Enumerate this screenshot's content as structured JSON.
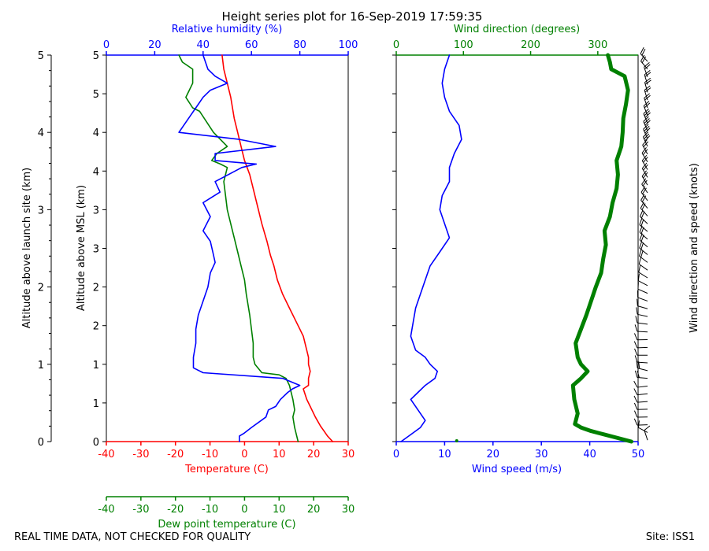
{
  "colors": {
    "red": "#ff0000",
    "green": "#008000",
    "blue": "#0000ff",
    "black": "#000000"
  },
  "chart_data": [
    {
      "id": "thermo",
      "type": "line",
      "title": "Height series plot for 16-Sep-2019 17:59:35",
      "y_left_label": "Altitude above launch site (km)",
      "y_left_ticks": [
        0,
        1,
        2,
        3,
        4,
        5
      ],
      "y_left_range": [
        0,
        5
      ],
      "y_inner_label": "Altitude above MSL (km)",
      "y_inner_ticks": [
        {
          "alt": 0.0,
          "label": "0"
        },
        {
          "alt": 0.5,
          "label": "1"
        },
        {
          "alt": 1.0,
          "label": "1"
        },
        {
          "alt": 1.5,
          "label": "2"
        },
        {
          "alt": 2.0,
          "label": "2"
        },
        {
          "alt": 2.5,
          "label": "3"
        },
        {
          "alt": 3.0,
          "label": "3"
        },
        {
          "alt": 3.5,
          "label": "4"
        },
        {
          "alt": 4.0,
          "label": "4"
        },
        {
          "alt": 4.5,
          "label": "5"
        },
        {
          "alt": 5.0,
          "label": "5"
        }
      ],
      "x_temp_label": "Temperature (C)",
      "x_temp_ticks": [
        -40,
        -30,
        -20,
        -10,
        0,
        10,
        20,
        30
      ],
      "x_temp_range": [
        -40,
        30
      ],
      "x_rh_label": "Relative humidity (%)",
      "x_rh_ticks": [
        0,
        20,
        40,
        60,
        80,
        100
      ],
      "x_rh_range": [
        0,
        100
      ],
      "x_dew_label": "Dew point temperature (C)",
      "x_dew_ticks": [
        -40,
        -30,
        -20,
        -10,
        0,
        10,
        20,
        30
      ],
      "x_dew_range": [
        -40,
        30
      ],
      "series": [
        {
          "name": "Temperature",
          "axis": "temp",
          "color": "red",
          "points": [
            [
              25.5,
              0
            ],
            [
              24,
              0.08
            ],
            [
              23,
              0.15
            ],
            [
              22,
              0.22
            ],
            [
              20.5,
              0.35
            ],
            [
              19,
              0.5
            ],
            [
              18,
              0.6
            ],
            [
              17,
              0.75
            ],
            [
              18.5,
              0.8
            ],
            [
              18.5,
              0.9
            ],
            [
              19,
              1.0
            ],
            [
              18.5,
              1.1
            ],
            [
              18.5,
              1.2
            ],
            [
              18,
              1.3
            ],
            [
              17,
              1.5
            ],
            [
              15,
              1.7
            ],
            [
              13,
              1.9
            ],
            [
              11,
              2.1
            ],
            [
              9.5,
              2.3
            ],
            [
              8.5,
              2.5
            ],
            [
              7.5,
              2.65
            ],
            [
              6.5,
              2.85
            ],
            [
              5,
              3.1
            ],
            [
              3.5,
              3.4
            ],
            [
              2.5,
              3.6
            ],
            [
              1.5,
              3.8
            ],
            [
              0,
              4.0
            ],
            [
              -1,
              4.2
            ],
            [
              -2,
              4.4
            ],
            [
              -3,
              4.6
            ],
            [
              -4,
              4.9
            ],
            [
              -5,
              5.1
            ],
            [
              -6,
              5.3
            ],
            [
              -6.5,
              5.5
            ]
          ]
        },
        {
          "name": "Dew point",
          "axis": "dew",
          "color": "green",
          "points": [
            [
              15.5,
              0
            ],
            [
              15,
              0.1
            ],
            [
              14.5,
              0.2
            ],
            [
              14,
              0.35
            ],
            [
              14.5,
              0.45
            ],
            [
              14,
              0.6
            ],
            [
              13,
              0.8
            ],
            [
              12,
              0.9
            ],
            [
              10,
              0.95
            ],
            [
              5,
              0.98
            ],
            [
              3,
              1.1
            ],
            [
              2.5,
              1.2
            ],
            [
              2.5,
              1.4
            ],
            [
              2,
              1.6
            ],
            [
              1.5,
              1.8
            ],
            [
              0.5,
              2.1
            ],
            [
              0,
              2.3
            ],
            [
              -1,
              2.5
            ],
            [
              -2,
              2.7
            ],
            [
              -3,
              2.9
            ],
            [
              -4,
              3.1
            ],
            [
              -5,
              3.3
            ],
            [
              -5.5,
              3.5
            ],
            [
              -6,
              3.7
            ],
            [
              -5,
              3.9
            ],
            [
              -7,
              3.95
            ],
            [
              -9.5,
              4.0
            ],
            [
              -8,
              4.1
            ],
            [
              -5,
              4.2
            ],
            [
              -7,
              4.3
            ],
            [
              -9,
              4.4
            ],
            [
              -13,
              4.7
            ],
            [
              -15,
              4.75
            ],
            [
              -17,
              4.9
            ],
            [
              -16,
              5.0
            ],
            [
              -15,
              5.1
            ],
            [
              -15,
              5.3
            ],
            [
              -18,
              5.4
            ],
            [
              -19,
              5.5
            ]
          ]
        },
        {
          "name": "Relative humidity",
          "axis": "rh",
          "color": "blue",
          "points": [
            [
              55,
              0
            ],
            [
              55,
              0.08
            ],
            [
              57,
              0.12
            ],
            [
              60,
              0.2
            ],
            [
              66,
              0.35
            ],
            [
              67,
              0.45
            ],
            [
              70,
              0.5
            ],
            [
              72,
              0.6
            ],
            [
              75,
              0.7
            ],
            [
              77,
              0.75
            ],
            [
              80,
              0.8
            ],
            [
              73,
              0.9
            ],
            [
              40,
              0.98
            ],
            [
              36,
              1.05
            ],
            [
              36,
              1.2
            ],
            [
              37,
              1.4
            ],
            [
              37,
              1.6
            ],
            [
              38,
              1.8
            ],
            [
              40,
              2.0
            ],
            [
              42,
              2.2
            ],
            [
              43,
              2.4
            ],
            [
              45,
              2.55
            ],
            [
              44,
              2.7
            ],
            [
              43,
              2.85
            ],
            [
              40,
              3.0
            ],
            [
              43,
              3.2
            ],
            [
              40,
              3.4
            ],
            [
              47,
              3.55
            ],
            [
              45,
              3.7
            ],
            [
              56,
              3.9
            ],
            [
              62,
              3.95
            ],
            [
              45,
              4.0
            ],
            [
              45,
              4.1
            ],
            [
              70,
              4.2
            ],
            [
              55,
              4.3
            ],
            [
              30,
              4.4
            ],
            [
              32,
              4.5
            ],
            [
              35,
              4.65
            ],
            [
              38,
              4.8
            ],
            [
              40,
              4.9
            ],
            [
              43,
              5.0
            ],
            [
              50,
              5.1
            ],
            [
              45,
              5.2
            ],
            [
              42,
              5.3
            ],
            [
              40,
              5.5
            ]
          ]
        }
      ]
    },
    {
      "id": "wind",
      "type": "line",
      "x_speed_label": "Wind speed (m/s)",
      "x_speed_ticks": [
        0,
        10,
        20,
        30,
        40,
        50
      ],
      "x_speed_range": [
        0,
        50
      ],
      "x_dir_label": "Wind direction (degrees)",
      "x_dir_ticks": [
        0,
        100,
        200,
        300
      ],
      "x_dir_range": [
        0,
        360
      ],
      "y_right_label": "Wind direction and speed (knots)",
      "series": [
        {
          "name": "Wind speed",
          "axis": "speed",
          "color": "blue",
          "points": [
            [
              1,
              0
            ],
            [
              3,
              0.1
            ],
            [
              5,
              0.2
            ],
            [
              6,
              0.3
            ],
            [
              5,
              0.4
            ],
            [
              4,
              0.5
            ],
            [
              3,
              0.6
            ],
            [
              4.5,
              0.7
            ],
            [
              6,
              0.8
            ],
            [
              8,
              0.9
            ],
            [
              8.5,
              1.0
            ],
            [
              7,
              1.1
            ],
            [
              6,
              1.2
            ],
            [
              4,
              1.3
            ],
            [
              3,
              1.5
            ],
            [
              3.5,
              1.7
            ],
            [
              4,
              1.9
            ],
            [
              5,
              2.1
            ],
            [
              6,
              2.3
            ],
            [
              7,
              2.5
            ],
            [
              9,
              2.7
            ],
            [
              11,
              2.9
            ],
            [
              10,
              3.1
            ],
            [
              9,
              3.3
            ],
            [
              9.5,
              3.5
            ],
            [
              11,
              3.7
            ],
            [
              11,
              3.9
            ],
            [
              12,
              4.1
            ],
            [
              13.5,
              4.3
            ],
            [
              13,
              4.5
            ],
            [
              11,
              4.7
            ],
            [
              10,
              4.9
            ],
            [
              9.5,
              5.1
            ],
            [
              10,
              5.3
            ],
            [
              11,
              5.5
            ]
          ]
        },
        {
          "name": "Wind direction",
          "axis": "dir",
          "color": "green",
          "width": 5,
          "points": [
            [
              350,
              0
            ],
            [
              330,
              0.05
            ],
            [
              310,
              0.1
            ],
            [
              290,
              0.15
            ],
            [
              275,
              0.2
            ],
            [
              266,
              0.25
            ],
            [
              270,
              0.4
            ],
            [
              265,
              0.6
            ],
            [
              263,
              0.8
            ],
            [
              275,
              0.9
            ],
            [
              285,
              1.0
            ],
            [
              275,
              1.1
            ],
            [
              270,
              1.2
            ],
            [
              267,
              1.4
            ],
            [
              275,
              1.6
            ],
            [
              283,
              1.8
            ],
            [
              290,
              2.0
            ],
            [
              297,
              2.2
            ],
            [
              305,
              2.4
            ],
            [
              308,
              2.6
            ],
            [
              312,
              2.8
            ],
            [
              310,
              3.0
            ],
            [
              318,
              3.2
            ],
            [
              322,
              3.4
            ],
            [
              328,
              3.6
            ],
            [
              330,
              3.8
            ],
            [
              328,
              4.0
            ],
            [
              335,
              4.2
            ],
            [
              337,
              4.4
            ],
            [
              338,
              4.6
            ],
            [
              342,
              4.8
            ],
            [
              345,
              5.0
            ],
            [
              340,
              5.2
            ],
            [
              320,
              5.3
            ],
            [
              318,
              5.4
            ],
            [
              315,
              5.5
            ]
          ]
        }
      ]
    }
  ],
  "footer": {
    "left_note": "REAL TIME DATA, NOT CHECKED FOR QUALITY",
    "right_note": "Site: ISS1"
  }
}
